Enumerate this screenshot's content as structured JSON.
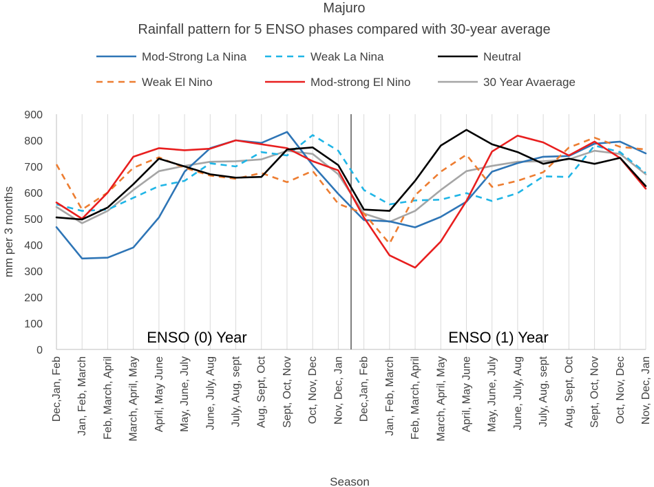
{
  "chart_data": {
    "type": "line",
    "title": "Majuro",
    "subtitle": "Rainfall pattern for 5 ENSO phases compared with 30-year average",
    "xlabel": "Season",
    "ylabel": "mm per 3 months",
    "ylim": [
      0,
      900
    ],
    "yticks": [
      0,
      100,
      200,
      300,
      400,
      500,
      600,
      700,
      800,
      900
    ],
    "grid": "vertical",
    "legend_position": "top",
    "categories": [
      "Dec,Jan, Feb",
      "Jan, Feb, March",
      "Feb, March, April",
      "March, April, May",
      "April, May June",
      "May, June, July",
      "June, July, Aug",
      "July, Aug, sept",
      "Aug, Sept, Oct",
      "Sept, Oct, Nov",
      "Oct, Nov, Dec",
      "Nov, Dec, Jan",
      "Dec,Jan, Feb",
      "Jan, Feb, March",
      "Feb, March, April",
      "March, April, May",
      "April, May June",
      "May, June, July",
      "June, July, Aug",
      "July, Aug, sept",
      "Aug, Sept, Oct",
      "Sept, Oct, Nov",
      "Oct, Nov, Dec",
      "Nov, Dec, Jan"
    ],
    "annotations": [
      "ENSO (0) Year",
      "ENSO (1) Year"
    ],
    "series": [
      {
        "name": "Mod-Strong La Nina",
        "color": "#2E75B6",
        "dash": "solid",
        "values": [
          468,
          348,
          351,
          390,
          505,
          680,
          770,
          800,
          790,
          832,
          705,
          595,
          495,
          490,
          467,
          507,
          565,
          680,
          713,
          737,
          740,
          787,
          795,
          750
        ]
      },
      {
        "name": "Weak La Nina",
        "color": "#1FB5E6",
        "dash": "dashed",
        "values": [
          555,
          530,
          535,
          580,
          625,
          645,
          712,
          700,
          755,
          742,
          820,
          760,
          610,
          555,
          570,
          573,
          598,
          568,
          598,
          662,
          660,
          780,
          755,
          675
        ]
      },
      {
        "name": "Neutral",
        "color": "#000000",
        "dash": "solid",
        "values": [
          505,
          497,
          543,
          632,
          730,
          700,
          670,
          657,
          660,
          765,
          773,
          705,
          535,
          530,
          645,
          780,
          840,
          785,
          755,
          710,
          730,
          710,
          733,
          625
        ]
      },
      {
        "name": "Weak El Nino",
        "color": "#ED7D31",
        "dash": "dashed",
        "values": [
          708,
          535,
          600,
          695,
          735,
          695,
          665,
          653,
          675,
          640,
          683,
          557,
          520,
          405,
          590,
          680,
          745,
          622,
          645,
          678,
          772,
          810,
          775,
          765
        ]
      },
      {
        "name": "Mod-strong El Nino",
        "color": "#E81E1E",
        "dash": "solid",
        "values": [
          562,
          500,
          600,
          737,
          770,
          762,
          768,
          800,
          785,
          770,
          720,
          685,
          505,
          360,
          313,
          413,
          568,
          757,
          818,
          792,
          742,
          795,
          732,
          615
        ]
      },
      {
        "name": "30 Year Avaerage",
        "color": "#A5A5A5",
        "dash": "solid",
        "values": [
          545,
          483,
          530,
          610,
          682,
          702,
          718,
          720,
          727,
          760,
          748,
          670,
          520,
          488,
          530,
          610,
          682,
          702,
          718,
          720,
          727,
          760,
          748,
          670
        ]
      }
    ]
  }
}
